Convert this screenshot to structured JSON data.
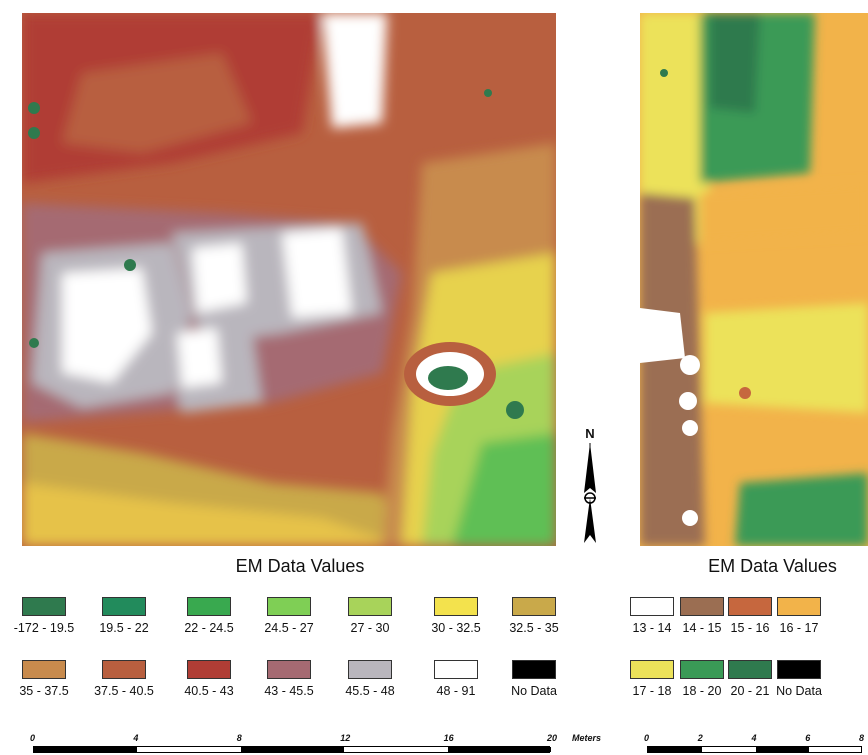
{
  "left_panel": {
    "legend_title": "EM Data Values",
    "legend": [
      {
        "label": "-172 - 19.5",
        "color": "#2f7a4e"
      },
      {
        "label": "19.5 - 22",
        "color": "#228b5c"
      },
      {
        "label": "22 - 24.5",
        "color": "#39a94f"
      },
      {
        "label": "24.5 - 27",
        "color": "#7fcf55"
      },
      {
        "label": "27 - 30",
        "color": "#a8d35a"
      },
      {
        "label": "30 - 32.5",
        "color": "#f3e24d"
      },
      {
        "label": "32.5 - 35",
        "color": "#c9a94a"
      },
      {
        "label": "35 - 37.5",
        "color": "#c88b4d"
      },
      {
        "label": "37.5 - 40.5",
        "color": "#b85f3f"
      },
      {
        "label": "40.5 - 43",
        "color": "#b03d35"
      },
      {
        "label": "43 - 45.5",
        "color": "#a56a72"
      },
      {
        "label": "45.5 - 48",
        "color": "#b9b6bd"
      },
      {
        "label": "48 - 91",
        "color": "#ffffff"
      },
      {
        "label": "No Data",
        "color": "#000000"
      }
    ],
    "scale_ticks": [
      "0",
      "4",
      "8",
      "12",
      "16",
      "20"
    ],
    "scale_unit": "Meters"
  },
  "north_arrow": {
    "label": "N",
    "icon": "north-arrow-icon"
  },
  "right_panel": {
    "legend_title": "EM Data Values",
    "legend": [
      {
        "label": "13 - 14",
        "color": "#ffffff"
      },
      {
        "label": "14 - 15",
        "color": "#9b6e52"
      },
      {
        "label": "15 - 16",
        "color": "#c6673e"
      },
      {
        "label": "16 - 17",
        "color": "#f2b34a"
      },
      {
        "label": "17 - 18",
        "color": "#ece25a"
      },
      {
        "label": "18 - 20",
        "color": "#3a9a56"
      },
      {
        "label": "20 - 21",
        "color": "#2f7a4e"
      },
      {
        "label": "No Data",
        "color": "#000000"
      }
    ],
    "scale_ticks": [
      "0",
      "2",
      "4",
      "6",
      "8"
    ]
  }
}
